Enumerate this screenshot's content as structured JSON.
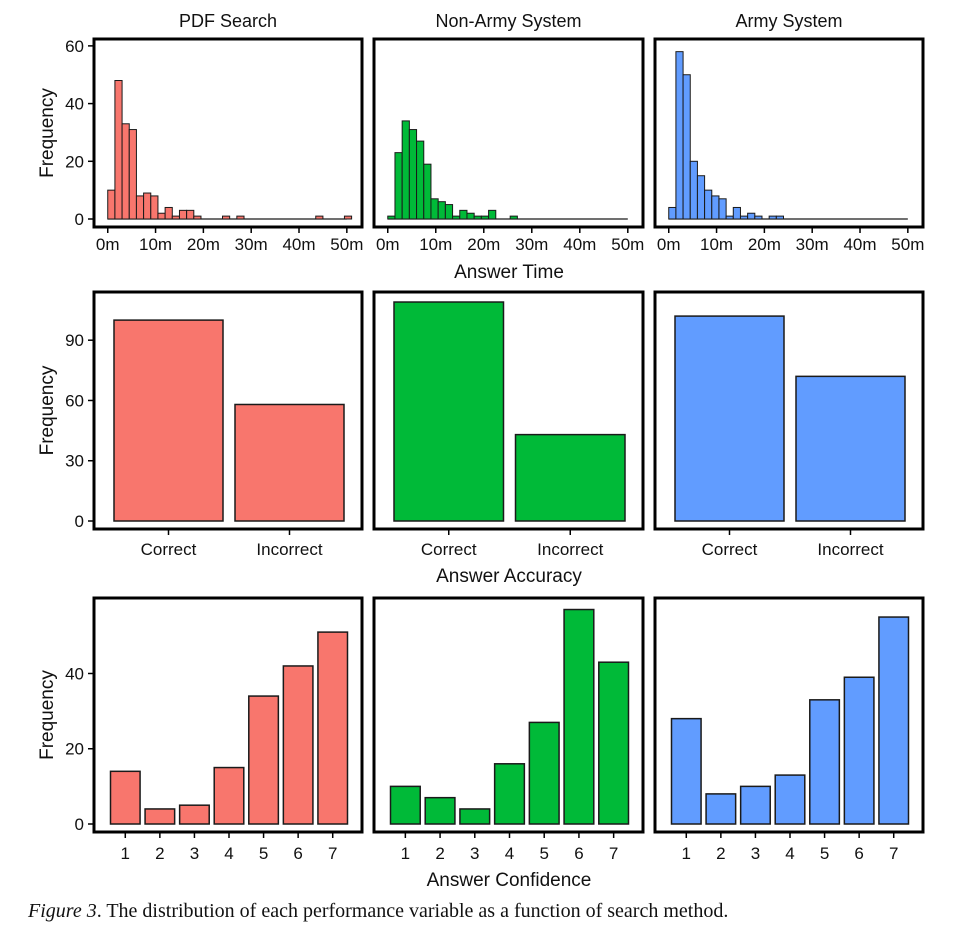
{
  "caption": {
    "label": "Figure 3",
    "text": ". The distribution of each performance variable as a function of search method."
  },
  "colors": {
    "PDF Search": "#f8766d",
    "Non-Army System": "#00ba38",
    "Army System": "#619cff",
    "frame": "#000000",
    "bar_edge": "#1a1a1a"
  },
  "chart_data": [
    {
      "type": "bar",
      "row": "time",
      "title": "PDF Search",
      "xlabel": "Answer Time",
      "ylabel": "Frequency",
      "bin_width_min": 1.5,
      "x_start_min": 0,
      "xlim": [
        -1.2,
        51.5
      ],
      "xticks": [
        0,
        10,
        20,
        30,
        40,
        50
      ],
      "xtick_labels": [
        "0m",
        "10m",
        "20m",
        "30m",
        "40m",
        "50m"
      ],
      "ylim": [
        0,
        61
      ],
      "yticks": [
        0,
        20,
        40,
        60
      ],
      "values": [
        10,
        48,
        33,
        31,
        8,
        9,
        8,
        2,
        4,
        1,
        3,
        3,
        1,
        0,
        0,
        0,
        1,
        0,
        1,
        0,
        0,
        0,
        0,
        0,
        0,
        0,
        0,
        0,
        0,
        1,
        0,
        0,
        0,
        1
      ]
    },
    {
      "type": "bar",
      "row": "time",
      "title": "Non-Army System",
      "xlabel": "Answer Time",
      "ylabel": "",
      "bin_width_min": 1.5,
      "x_start_min": 0,
      "xlim": [
        -1.2,
        51.5
      ],
      "xticks": [
        0,
        10,
        20,
        30,
        40,
        50
      ],
      "xtick_labels": [
        "0m",
        "10m",
        "20m",
        "30m",
        "40m",
        "50m"
      ],
      "ylim": [
        0,
        61
      ],
      "yticks": [],
      "values": [
        1,
        23,
        34,
        31,
        27,
        19,
        7,
        6,
        5,
        1,
        3,
        2,
        1,
        1,
        3,
        0,
        0,
        1
      ]
    },
    {
      "type": "bar",
      "row": "time",
      "title": "Army System",
      "xlabel": "Answer Time",
      "ylabel": "",
      "bin_width_min": 1.5,
      "x_start_min": 0,
      "xlim": [
        -1.2,
        51.5
      ],
      "xticks": [
        0,
        10,
        20,
        30,
        40,
        50
      ],
      "xtick_labels": [
        "0m",
        "10m",
        "20m",
        "30m",
        "40m",
        "50m"
      ],
      "ylim": [
        0,
        61
      ],
      "yticks": [],
      "values": [
        4,
        58,
        50,
        20,
        15,
        10,
        8,
        7,
        1,
        4,
        1,
        2,
        1,
        0,
        1,
        1
      ]
    },
    {
      "type": "bar",
      "row": "accuracy",
      "title": "",
      "xlabel": "Answer Accuracy",
      "ylabel": "Frequency",
      "categories": [
        "Correct",
        "Incorrect"
      ],
      "values": [
        100,
        58
      ],
      "ylim": [
        0,
        112
      ],
      "yticks": [
        0,
        30,
        60,
        90
      ]
    },
    {
      "type": "bar",
      "row": "accuracy",
      "title": "",
      "xlabel": "Answer Accuracy",
      "ylabel": "",
      "categories": [
        "Correct",
        "Incorrect"
      ],
      "values": [
        109,
        43
      ],
      "ylim": [
        0,
        112
      ],
      "yticks": []
    },
    {
      "type": "bar",
      "row": "accuracy",
      "title": "",
      "xlabel": "Answer Accuracy",
      "ylabel": "",
      "categories": [
        "Correct",
        "Incorrect"
      ],
      "values": [
        102,
        72
      ],
      "ylim": [
        0,
        112
      ],
      "yticks": []
    },
    {
      "type": "bar",
      "row": "confidence",
      "title": "",
      "xlabel": "Answer Confidence",
      "ylabel": "Frequency",
      "categories": [
        "1",
        "2",
        "3",
        "4",
        "5",
        "6",
        "7"
      ],
      "values": [
        14,
        4,
        5,
        15,
        34,
        42,
        51
      ],
      "ylim": [
        0,
        59
      ],
      "yticks": [
        0,
        20,
        40
      ]
    },
    {
      "type": "bar",
      "row": "confidence",
      "title": "",
      "xlabel": "Answer Confidence",
      "ylabel": "",
      "categories": [
        "1",
        "2",
        "3",
        "4",
        "5",
        "6",
        "7"
      ],
      "values": [
        10,
        7,
        4,
        16,
        27,
        57,
        43
      ],
      "ylim": [
        0,
        59
      ],
      "yticks": []
    },
    {
      "type": "bar",
      "row": "confidence",
      "title": "",
      "xlabel": "Answer Confidence",
      "ylabel": "",
      "categories": [
        "1",
        "2",
        "3",
        "4",
        "5",
        "6",
        "7"
      ],
      "values": [
        28,
        8,
        10,
        13,
        33,
        39,
        55
      ],
      "ylim": [
        0,
        59
      ],
      "yticks": []
    }
  ]
}
